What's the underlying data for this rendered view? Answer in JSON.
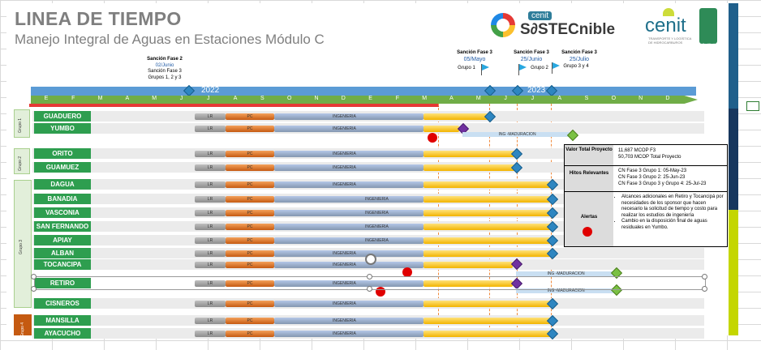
{
  "header": {
    "title": "LINEA DE TIEMPO",
    "subtitle": "Manejo Integral de Aguas en Estaciones Módulo C"
  },
  "logos": {
    "sostecnible_top": "cenit",
    "sostecnible": "S∂STECnible",
    "cenit": "cenit",
    "cenit_tag": "TRANSPORTE Y LOGÍSTICA DE HIDROCARBUROS",
    "cert": "Certified"
  },
  "milestones": [
    {
      "title": "Sanción Fase 2",
      "date": "02/Junio",
      "lines": [
        "Sanción Fase 3",
        "Grupos 1, 2 y 3"
      ]
    },
    {
      "title": "Sanción Fase 3",
      "date": "05/Mayo",
      "lines": [
        "Grupo 1"
      ]
    },
    {
      "title": "Sanción Fase 3",
      "date": "25/Junio",
      "lines": [
        "Grupo 2"
      ]
    },
    {
      "title": "Sanción Fase 3",
      "date": "25/Julio",
      "lines": [
        "Grupo 3 y 4"
      ]
    }
  ],
  "timeline": {
    "years": [
      "2022",
      "2023"
    ],
    "months": [
      "E",
      "F",
      "M",
      "A",
      "M",
      "J",
      "J",
      "A",
      "S",
      "O",
      "N",
      "D",
      "E",
      "F",
      "M",
      "A",
      "M",
      "J",
      "J",
      "A",
      "S",
      "O",
      "N",
      "D"
    ]
  },
  "groups": [
    "Grupo 1",
    "Grupo 2",
    "Grupo 3",
    "Grupo 4"
  ],
  "rows": [
    {
      "name": "GUADUERO",
      "lr": "LR",
      "pc": "PC",
      "ing": "INGENIERIA"
    },
    {
      "name": "YUMBO",
      "lr": "LR",
      "pc": "PC",
      "ing": "INGENIERIA",
      "mad": "ING -MADURACION"
    },
    {
      "name": "ORITO",
      "lr": "LR",
      "pc": "PC",
      "ing": "INGENIERIA"
    },
    {
      "name": "GUAMUEZ",
      "lr": "LR",
      "pc": "PC",
      "ing": "INGENIERIA"
    },
    {
      "name": "DAGUA",
      "lr": "LR",
      "pc": "PC",
      "ing": "INGENIERIA"
    },
    {
      "name": "BANADIA",
      "lr": "LR",
      "pc": "PC",
      "ing": "INGENIERIA"
    },
    {
      "name": "VASCONIA",
      "lr": "LR",
      "pc": "PC",
      "ing": "INGENIERIA"
    },
    {
      "name": "SAN FERNANDO",
      "lr": "LR",
      "pc": "PC",
      "ing": "INGENIERIA"
    },
    {
      "name": "APIAY",
      "lr": "LR",
      "pc": "PC",
      "ing": "INGENIERIA"
    },
    {
      "name": "ALBAN",
      "lr": "LR",
      "pc": "PC",
      "ing": "INGENIERIA"
    },
    {
      "name": "TOCANCIPA",
      "lr": "LR",
      "pc": "PC",
      "ing": "INGENIERIA",
      "mad": "ING -MADURACION"
    },
    {
      "name": "RETIRO",
      "lr": "LR",
      "pc": "PC",
      "ing": "INGENIERIA",
      "mad": "ING -MADURACION"
    },
    {
      "name": "CISNEROS",
      "lr": "LR",
      "pc": "PC",
      "ing": "INGENIERIA"
    },
    {
      "name": "MANSILLA",
      "lr": "LR",
      "pc": "PC",
      "ing": "INGENIERIA"
    },
    {
      "name": "AYACUCHO",
      "lr": "LR",
      "pc": "PC",
      "ing": "INGENIERIA"
    }
  ],
  "info": {
    "valor_label": "Valor Total Proyecto",
    "valor_lines": [
      "11,687 MCOP F3",
      "50,703 MCOP Total Proyecto"
    ],
    "hitos_label": "Hitos Relevantes",
    "hitos_lines": [
      "CN Fase 3  Grupo 1: 05-May-23",
      "CN Fase 3 Grupo 2: 25-Jun-23",
      "CN Fase 3  Grupo 3 y Grupo 4: 25-Jul-23"
    ],
    "alertas_label": "Alertas",
    "alertas": [
      "Alcances adicionales en Retiro y Tocancipá por necesidades de los sponsor que hacen necesario la solicitud de tiempo y costo para realizar los estudios de ingeniería",
      "Cambio en la disposición final de aguas residuales en Yumbo."
    ]
  },
  "colors": {
    "station_green": "#2e9e4f",
    "year_blue": "#5b9bd5",
    "month_green": "#70ad47",
    "alert_red": "#e00000",
    "diamond_blue": "#2e86c1",
    "diamond_purple": "#7030a0",
    "diamond_green": "#7ac143"
  }
}
